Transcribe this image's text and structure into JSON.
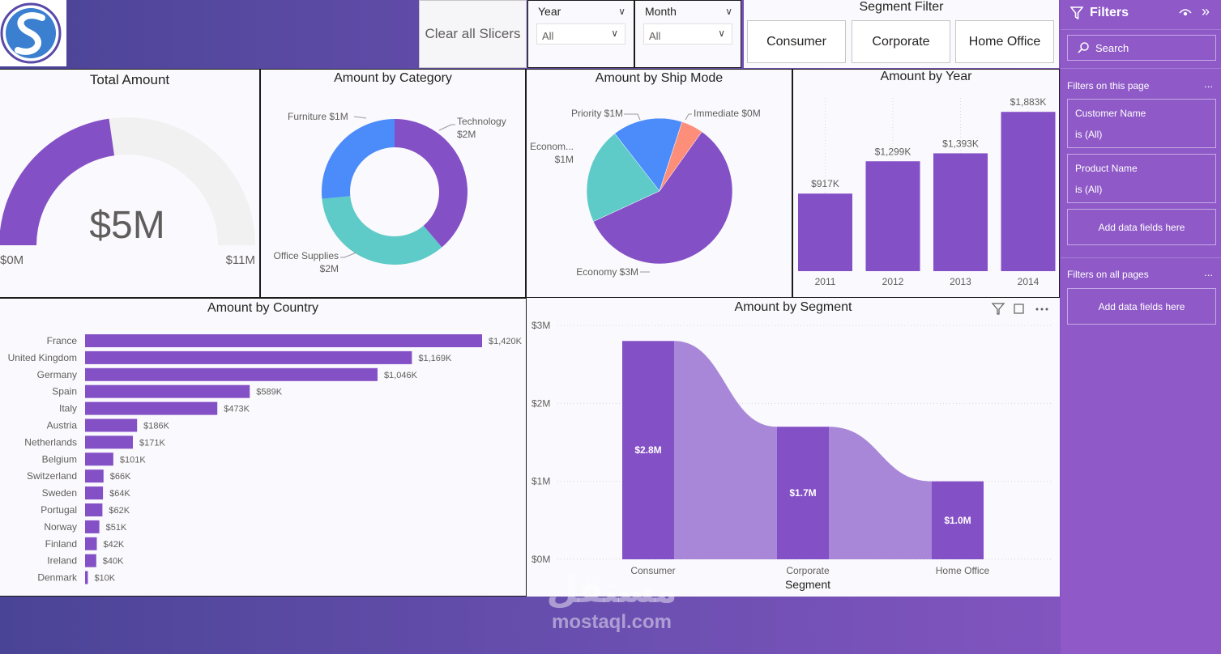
{
  "header": {
    "clear_slicers": "Clear all Slicers",
    "year_slicer": {
      "label": "Year",
      "value": "All"
    },
    "month_slicer": {
      "label": "Month",
      "value": "All"
    },
    "segment_filter": {
      "title": "Segment Filter",
      "options": [
        "Consumer",
        "Corporate",
        "Home Office"
      ]
    }
  },
  "filters_pane": {
    "title": "Filters",
    "search_placeholder": "Search",
    "on_this_page": "Filters on this page",
    "cards": [
      {
        "name": "Customer Name",
        "value": "is (All)"
      },
      {
        "name": "Product Name",
        "value": "is (All)"
      }
    ],
    "add_fields": "Add data fields here",
    "on_all_pages": "Filters on all pages",
    "more": "..."
  },
  "colors": {
    "purple": "#8450c6",
    "light_gray": "#f1f1f1",
    "blue": "#4b8bfa",
    "teal": "#5ecbc8",
    "salmon": "#fd8e7a",
    "ribbon": "#a887d8"
  },
  "watermark": {
    "text": "mostaql.com"
  },
  "chart_data": [
    {
      "id": "total_amount",
      "type": "gauge",
      "title": "Total Amount",
      "value": 5,
      "value_label": "$5M",
      "min_label": "$0M",
      "max_label": "$11M",
      "min": 0,
      "max": 11
    },
    {
      "id": "amount_by_category",
      "type": "pie",
      "donut": true,
      "title": "Amount by Category",
      "labels": [
        "Technology",
        "Office Supplies",
        "Furniture"
      ],
      "value_labels": [
        "$2M",
        "$2M",
        "$1M"
      ],
      "values": [
        1.9,
        1.7,
        1.3
      ]
    },
    {
      "id": "amount_by_ship_mode",
      "type": "pie",
      "title": "Amount by Ship Mode",
      "labels": [
        "Economy",
        "Economy...",
        "Priority",
        "Immediate"
      ],
      "display_labels": [
        "Economy $3M",
        "Econom...",
        "Priority $1M",
        "Immediate $0M"
      ],
      "value_labels": [
        "$3M",
        "$1M",
        "$1M",
        "$0M"
      ],
      "values": [
        3.0,
        1.1,
        0.8,
        0.25
      ]
    },
    {
      "id": "amount_by_year",
      "type": "bar",
      "title": "Amount by Year",
      "categories": [
        "2011",
        "2012",
        "2013",
        "2014"
      ],
      "values": [
        917,
        1299,
        1393,
        1883
      ],
      "value_labels": [
        "$917K",
        "$1,299K",
        "$1,393K",
        "$1,883K"
      ],
      "ylim": [
        0,
        2000
      ]
    },
    {
      "id": "amount_by_country",
      "type": "bar",
      "orientation": "horizontal",
      "title": "Amount by Country",
      "categories": [
        "France",
        "United Kingdom",
        "Germany",
        "Spain",
        "Italy",
        "Austria",
        "Netherlands",
        "Belgium",
        "Switzerland",
        "Sweden",
        "Portugal",
        "Norway",
        "Finland",
        "Ireland",
        "Denmark"
      ],
      "values": [
        1420,
        1169,
        1046,
        589,
        473,
        186,
        171,
        101,
        66,
        64,
        62,
        51,
        42,
        40,
        10
      ],
      "value_labels": [
        "$1,420K",
        "$1,169K",
        "$1,046K",
        "$589K",
        "$473K",
        "$186K",
        "$171K",
        "$101K",
        "$66K",
        "$64K",
        "$62K",
        "$51K",
        "$42K",
        "$40K",
        "$10K"
      ]
    },
    {
      "id": "amount_by_segment",
      "type": "bar",
      "ribbon": true,
      "title": "Amount by Segment",
      "categories": [
        "Consumer",
        "Corporate",
        "Home Office"
      ],
      "values": [
        2.8,
        1.7,
        1.0
      ],
      "value_labels": [
        "$2.8M",
        "$1.7M",
        "$1.0M"
      ],
      "xlabel": "Segment",
      "yticks": [
        "$0M",
        "$1M",
        "$2M",
        "$3M"
      ],
      "ylim": [
        0,
        3
      ],
      "grid": true
    }
  ]
}
